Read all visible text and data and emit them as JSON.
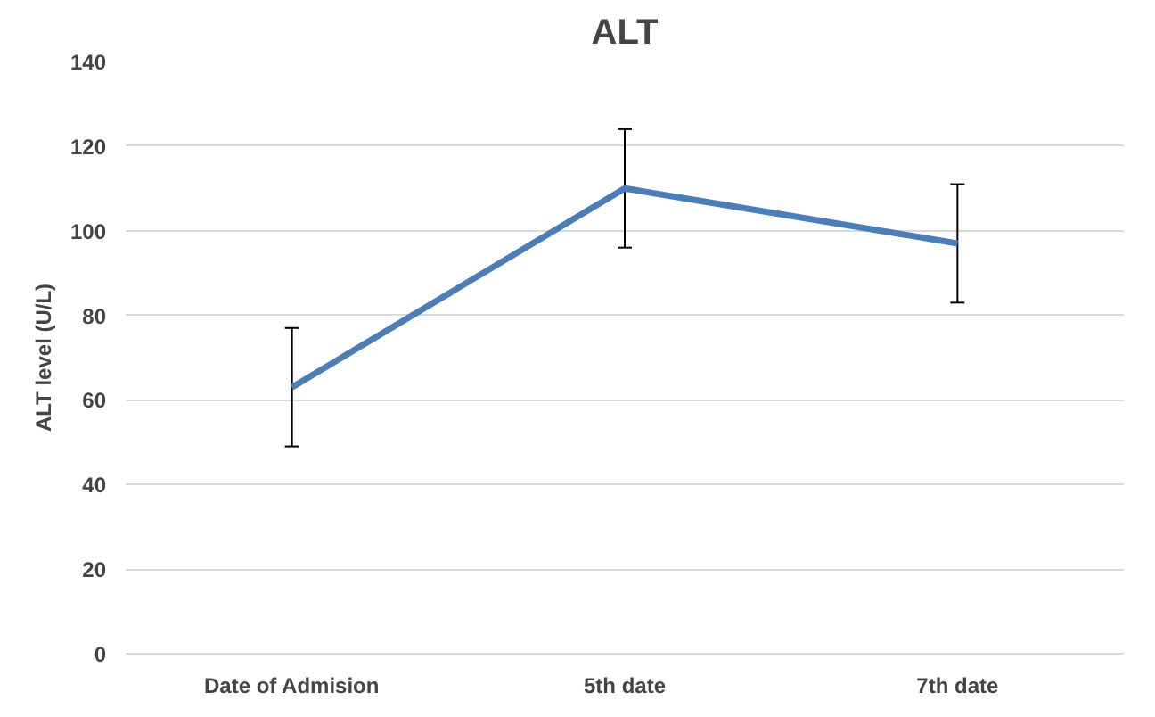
{
  "chart_data": {
    "type": "line",
    "title": "ALT",
    "ylabel": "ALT level (U/L)",
    "categories": [
      "Date of Admision",
      "5th date",
      "7th date"
    ],
    "series": [
      {
        "color": "#4a7ebb",
        "values": [
          63,
          110,
          97
        ],
        "errors": [
          14,
          14,
          14
        ]
      }
    ],
    "ylim": [
      0,
      140
    ],
    "yticks": [
      0,
      20,
      40,
      60,
      80,
      100,
      120,
      140
    ],
    "grid": "y",
    "marker": "none",
    "line_style": "solid"
  }
}
